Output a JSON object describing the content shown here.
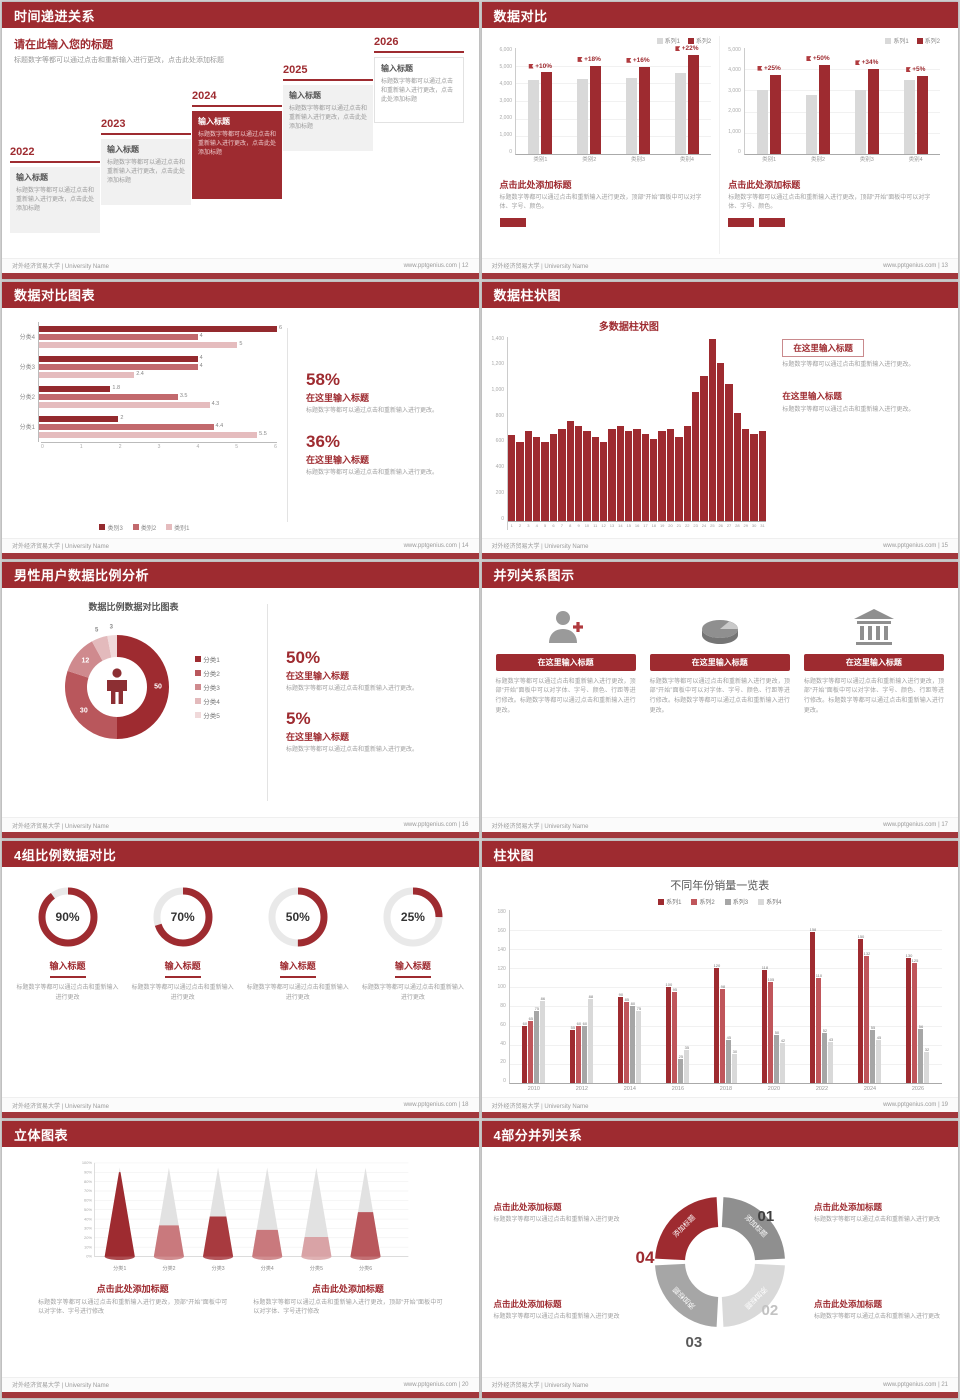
{
  "theme": {
    "accent": "#9e2b30",
    "accent_dark": "#8c2529",
    "text_gray": "#999999",
    "page_bg": "#d2d2d2"
  },
  "footer": {
    "left": "对外经济贸易大学 | University Name",
    "site": "www.pptgenius.com"
  },
  "slides": {
    "s12": {
      "header": "时间递进关系",
      "footer_right": "www.pptgenius.com | 12",
      "title": "请在此输入您的标题",
      "subtitle": "标题数字等都可以通过点击和重新输入进行更改，点击此处添加标题",
      "items": [
        {
          "year": "2022",
          "title": "输入标题",
          "body": "标题数字等都可以通过点击和重新输入进行更改，点击此处添加标题"
        },
        {
          "year": "2023",
          "title": "输入标题",
          "body": "标题数字等都可以通过点击和重新输入进行更改，点击此处添加标题"
        },
        {
          "year": "2024",
          "title": "输入标题",
          "body": "标题数字等都可以通过点击和重新输入进行更改，点击此处添加标题"
        },
        {
          "year": "2025",
          "title": "输入标题",
          "body": "标题数字等都可以通过点击和重新输入进行更改，点击此处添加标题"
        },
        {
          "year": "2026",
          "title": "输入标题",
          "body": "标题数字等都可以通过点击和重新输入进行更改，点击此处添加标题"
        }
      ]
    },
    "s13": {
      "header": "数据对比",
      "footer_right": "www.pptgenius.com | 13",
      "left": {
        "title": "点击此处添加标题",
        "body": "标题数字等都可以通过点击和重新输入进行更改，顶部“开始”面板中可以对字体、字号、颜色。"
      },
      "right": {
        "title": "点击此处添加标题",
        "body": "标题数字等都可以通过点击和重新输入进行更改，顶部“开始”面板中可以对字体、字号、颜色。"
      }
    },
    "s14": {
      "header": "数据对比图表",
      "footer_right": "www.pptgenius.com | 14",
      "stats": [
        {
          "pct": "58%",
          "title": "在这里输入标题",
          "body": "标题数字等都可以通过点击和重新输入进行更改。"
        },
        {
          "pct": "36%",
          "title": "在这里输入标题",
          "body": "标题数字等都可以通过点击和重新输入进行更改。"
        }
      ]
    },
    "s15": {
      "header": "数据柱状图",
      "footer_right": "www.pptgenius.com | 15",
      "chart_title": "多数据柱状图",
      "blocks": [
        {
          "title": "在这里输入标题",
          "body": "标题数字等都可以通过点击和重新输入进行更改。"
        },
        {
          "title": "在这里输入标题",
          "body": "标题数字等都可以通过点击和重新输入进行更改。"
        }
      ]
    },
    "s16": {
      "header": "男性用户数据比例分析",
      "footer_right": "www.pptgenius.com | 16",
      "chart_title": "数据比例数据对比图表",
      "stats": [
        {
          "pct": "50%",
          "title": "在这里输入标题",
          "body": "标题数字等都可以通过点击和重新输入进行更改。"
        },
        {
          "pct": "5%",
          "title": "在这里输入标题",
          "body": "标题数字等都可以通过点击和重新输入进行更改。"
        }
      ]
    },
    "s17": {
      "header": "并列关系图示",
      "footer_right": "www.pptgenius.com | 17",
      "cols": [
        {
          "title": "在这里输入标题",
          "body": "标题数字等都可以通过点击和重新输入进行更改，顶部“开始”面板中可以对字体、字号、颜色、行距等进行修改。标题数字等都可以通过点击和重新输入进行更改。"
        },
        {
          "title": "在这里输入标题",
          "body": "标题数字等都可以通过点击和重新输入进行更改，顶部“开始”面板中可以对字体、字号、颜色、行距等进行修改。标题数字等都可以通过点击和重新输入进行更改。"
        },
        {
          "title": "在这里输入标题",
          "body": "标题数字等都可以通过点击和重新输入进行更改，顶部“开始”面板中可以对字体、字号、颜色、行距等进行修改。标题数字等都可以通过点击和重新输入进行更改。"
        }
      ]
    },
    "s18": {
      "header": "4组比例数据对比",
      "footer_right": "www.pptgenius.com | 18",
      "cols": [
        {
          "title": "输入标题",
          "body": "标题数字等都可以通过点击和重新输入进行更改"
        },
        {
          "title": "输入标题",
          "body": "标题数字等都可以通过点击和重新输入进行更改"
        },
        {
          "title": "输入标题",
          "body": "标题数字等都可以通过点击和重新输入进行更改"
        },
        {
          "title": "输入标题",
          "body": "标题数字等都可以通过点击和重新输入进行更改"
        }
      ]
    },
    "s19": {
      "header": "柱状图",
      "footer_right": "www.pptgenius.com | 19",
      "chart_title": "不同年份销量一览表"
    },
    "s20": {
      "header": "立体图表",
      "footer_right": "www.pptgenius.com | 20",
      "blocks": [
        {
          "title": "点击此处添加标题",
          "body": "标题数字等都可以通过点击和重新输入进行更改，顶部“开始”面板中可以对字体、字号进行修改"
        },
        {
          "title": "点击此处添加标题",
          "body": "标题数字等都可以通过点击和重新输入进行更改，顶部“开始”面板中可以对字体、字号进行修改"
        }
      ]
    },
    "s21": {
      "header": "4部分并列关系",
      "footer_right": "www.pptgenius.com | 21",
      "numbers": [
        "01",
        "02",
        "03",
        "04"
      ],
      "blocks": [
        {
          "title": "点击此处添加标题",
          "body": "标题数字等都可以通过点击和重新输入进行更改"
        },
        {
          "title": "点击此处添加标题",
          "body": "标题数字等都可以通过点击和重新输入进行更改"
        },
        {
          "title": "点击此处添加标题",
          "body": "标题数字等都可以通过点击和重新输入进行更改"
        },
        {
          "title": "点击此处添加标题",
          "body": "标题数字等都可以通过点击和重新输入进行更改"
        }
      ]
    }
  },
  "chart_data": [
    {
      "id": "s13_left",
      "type": "group2",
      "categories": [
        "类别1",
        "类别2",
        "类别3",
        "类别4"
      ],
      "series": [
        {
          "name": "系列1",
          "color": "#d9d9d9",
          "values": [
            4200,
            4250,
            4300,
            4600
          ]
        },
        {
          "name": "系列2",
          "color": "#9e2b30",
          "values": [
            4620,
            5000,
            4950,
            5600
          ]
        }
      ],
      "pct_labels": [
        "+10%",
        "+18%",
        "+16%",
        "+22%"
      ],
      "ylim": [
        0,
        6000
      ],
      "yticks": [
        "6,000",
        "5,000",
        "4,000",
        "3,000",
        "2,000",
        "1,000",
        "0"
      ]
    },
    {
      "id": "s13_right",
      "type": "group2",
      "categories": [
        "类别1",
        "类别2",
        "类别3",
        "类别4"
      ],
      "series": [
        {
          "name": "系列1",
          "color": "#d9d9d9",
          "values": [
            3000,
            2800,
            3000,
            3500
          ]
        },
        {
          "name": "系列2",
          "color": "#9e2b30",
          "values": [
            3750,
            4200,
            4000,
            3680
          ]
        }
      ],
      "pct_labels": [
        "+25%",
        "+50%",
        "+34%",
        "+5%"
      ],
      "ylim": [
        0,
        5000
      ],
      "yticks": [
        "5,000",
        "4,000",
        "3,000",
        "2,000",
        "1,000",
        "0"
      ]
    },
    {
      "id": "s14",
      "type": "hbar",
      "categories": [
        "分类4",
        "分类3",
        "分类2",
        "分类1"
      ],
      "series": [
        {
          "name": "类别3",
          "color": "#942a2e",
          "values": [
            6,
            4,
            1.8,
            2
          ]
        },
        {
          "name": "类别2",
          "color": "#c2696d",
          "values": [
            4,
            4,
            3.5,
            4.4
          ]
        },
        {
          "name": "类别1",
          "color": "#e5bcbe",
          "values": [
            5,
            2.4,
            4.3,
            5.5
          ]
        }
      ],
      "xmax": 6,
      "xticks": [
        "0",
        "1",
        "2",
        "3",
        "4",
        "5",
        "6"
      ]
    },
    {
      "id": "s15",
      "type": "bar",
      "title": "多数据柱状图",
      "color": "#9e2b30",
      "values": [
        650,
        600,
        680,
        640,
        600,
        660,
        700,
        760,
        720,
        680,
        640,
        600,
        700,
        720,
        680,
        700,
        660,
        620,
        680,
        700,
        640,
        720,
        980,
        1100,
        1380,
        1200,
        1040,
        820,
        700,
        660,
        680
      ],
      "ylim": [
        0,
        1400
      ],
      "yticks": [
        "1,400",
        "1,200",
        "1,000",
        "800",
        "600",
        "400",
        "200",
        "0"
      ]
    },
    {
      "id": "s16",
      "type": "donut",
      "title": "数据比例数据对比图表",
      "values": [
        50,
        30,
        12,
        5,
        3
      ],
      "colors": [
        "#9e2b30",
        "#b9575c",
        "#cf8a8e",
        "#e3babc",
        "#f0d9da"
      ],
      "legend": [
        {
          "label": "分类1",
          "color": "#9e2b30"
        },
        {
          "label": "分类2",
          "color": "#b9575c"
        },
        {
          "label": "分类3",
          "color": "#cf8a8e"
        },
        {
          "label": "分类4",
          "color": "#e3babc"
        },
        {
          "label": "分类5",
          "color": "#f0d9da"
        }
      ]
    },
    {
      "id": "s18_g0",
      "type": "gauge",
      "value": 90,
      "label": "90%"
    },
    {
      "id": "s18_g1",
      "type": "gauge",
      "value": 70,
      "label": "70%"
    },
    {
      "id": "s18_g2",
      "type": "gauge",
      "value": 50,
      "label": "50%"
    },
    {
      "id": "s18_g3",
      "type": "gauge",
      "value": 25,
      "label": "25%"
    },
    {
      "id": "s19",
      "type": "group4",
      "title": "不同年份销量一览表",
      "categories": [
        "2010",
        "2012",
        "2014",
        "2016",
        "2018",
        "2020",
        "2022",
        "2024",
        "2026"
      ],
      "series": [
        {
          "name": "系列1",
          "color": "#9e2b30",
          "values": [
            60,
            55,
            90,
            100,
            120,
            118,
            158,
            150,
            130
          ]
        },
        {
          "name": "系列2",
          "color": "#c0565b",
          "values": [
            65,
            60,
            85,
            95,
            98,
            105,
            110,
            132,
            125
          ]
        },
        {
          "name": "系列3",
          "color": "#a6a6a6",
          "values": [
            75,
            60,
            80,
            25,
            45,
            50,
            52,
            55,
            56
          ]
        },
        {
          "name": "系列4",
          "color": "#d9d9d9",
          "values": [
            86,
            88,
            75,
            35,
            30,
            42,
            43,
            45,
            32
          ]
        }
      ],
      "ylim": [
        0,
        180
      ],
      "yticks": [
        "180",
        "160",
        "140",
        "120",
        "100",
        "80",
        "60",
        "40",
        "20",
        "0"
      ]
    },
    {
      "id": "s20",
      "type": "cone",
      "labels": [
        "分类1",
        "分类2",
        "分类3",
        "分类4",
        "分类5",
        "分类6"
      ],
      "yticks": [
        "100%",
        "90%",
        "80%",
        "70%",
        "60%",
        "50%",
        "40%",
        "30%",
        "20%",
        "10%",
        "0%"
      ],
      "cones": [
        {
          "value": 0.95,
          "color": "#9e2b30"
        },
        {
          "value": 0.35,
          "color": "#c9797d"
        },
        {
          "value": 0.45,
          "color": "#a83a3f"
        },
        {
          "value": 0.3,
          "color": "#c9797d"
        },
        {
          "value": 0.22,
          "color": "#d9a3a6"
        },
        {
          "value": 0.5,
          "color": "#b9575c"
        }
      ]
    },
    {
      "id": "s21",
      "type": "ring4",
      "segments": [
        {
          "label": "添加标题",
          "color": "#9e2b30",
          "from": 270,
          "to": 360
        },
        {
          "label": "添加标题",
          "color": "#8f8f8f",
          "from": 0,
          "to": 90
        },
        {
          "label": "添加标题",
          "color": "#d9d9d9",
          "from": 90,
          "to": 180
        },
        {
          "label": "添加标题",
          "color": "#a6a6a6",
          "from": 180,
          "to": 270
        }
      ]
    }
  ]
}
